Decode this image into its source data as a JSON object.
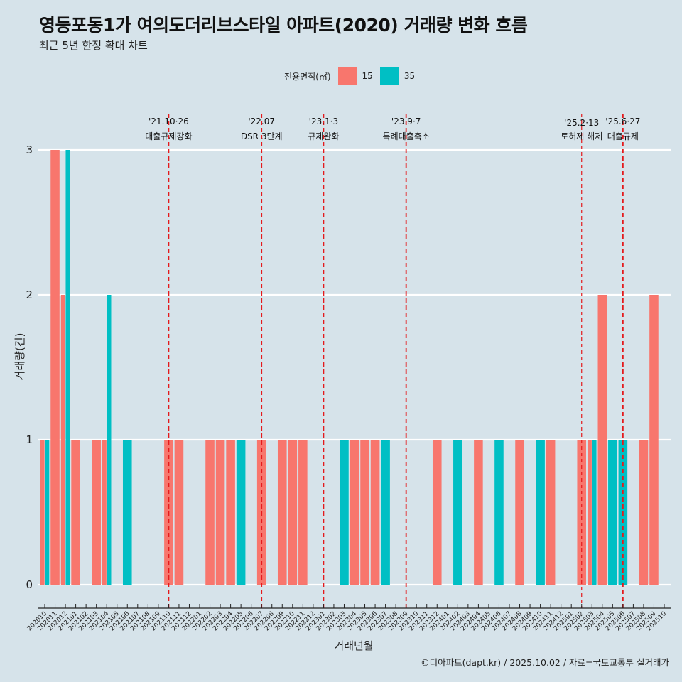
{
  "title": "영등포동1가 여의도더리브스타일 아파트(2020) 거래량 변화 흐름",
  "subtitle": "최근 5년 한정 확대 차트",
  "caption": "©디아파트(dapt.kr) / 2025.10.02 / 자료=국토교통부 실거래가",
  "legend": {
    "title": "전용면적(㎡)",
    "items": [
      {
        "label": "15",
        "color": "#f8766d"
      },
      {
        "label": "35",
        "color": "#00bfc4"
      }
    ]
  },
  "chart_data": {
    "type": "bar",
    "title": "영등포동1가 여의도더리브스타일 아파트(2020) 거래량 변화 흐름",
    "subtitle": "최근 5년 한정 확대 차트",
    "xlabel": "거래년월",
    "ylabel": "거래량(건)",
    "ylim": [
      0,
      3
    ],
    "yticks": [
      0,
      1,
      2,
      3
    ],
    "grid": true,
    "legend_position": "top",
    "bar_mode": "dodge",
    "categories": [
      "202010",
      "202011",
      "202012",
      "202101",
      "202102",
      "202103",
      "202104",
      "202105",
      "202106",
      "202107",
      "202108",
      "202109",
      "202110",
      "202111",
      "202112",
      "202201",
      "202202",
      "202203",
      "202204",
      "202205",
      "202206",
      "202207",
      "202208",
      "202209",
      "202210",
      "202211",
      "202212",
      "202301",
      "202302",
      "202303",
      "202304",
      "202305",
      "202306",
      "202307",
      "202308",
      "202309",
      "202310",
      "202311",
      "202312",
      "202401",
      "202402",
      "202403",
      "202404",
      "202405",
      "202406",
      "202407",
      "202408",
      "202409",
      "202410",
      "202411",
      "202412",
      "202501",
      "202502",
      "202503",
      "202504",
      "202505",
      "202506",
      "202507",
      "202508",
      "202509",
      "202510"
    ],
    "series": [
      {
        "name": "15",
        "color": "#f8766d",
        "values": [
          1,
          3,
          2,
          1,
          0,
          1,
          1,
          0,
          0,
          0,
          0,
          0,
          1,
          1,
          0,
          0,
          1,
          1,
          1,
          0,
          0,
          1,
          0,
          1,
          1,
          1,
          0,
          0,
          0,
          0,
          1,
          1,
          1,
          0,
          0,
          0,
          0,
          0,
          1,
          0,
          0,
          0,
          1,
          0,
          0,
          0,
          1,
          0,
          0,
          1,
          0,
          0,
          1,
          1,
          2,
          0,
          0,
          0,
          1,
          2,
          0
        ]
      },
      {
        "name": "35",
        "color": "#00bfc4",
        "values": [
          1,
          0,
          3,
          0,
          0,
          0,
          2,
          0,
          1,
          0,
          0,
          0,
          0,
          0,
          0,
          0,
          0,
          0,
          0,
          1,
          0,
          0,
          0,
          0,
          0,
          0,
          0,
          0,
          0,
          1,
          0,
          0,
          0,
          1,
          0,
          0,
          0,
          0,
          0,
          0,
          1,
          0,
          0,
          0,
          1,
          0,
          0,
          0,
          1,
          0,
          0,
          0,
          0,
          1,
          0,
          1,
          1,
          0,
          0,
          0,
          0
        ]
      }
    ],
    "annotations": [
      {
        "month": "202110",
        "date": "'21.10·26",
        "label": "대출규제강화"
      },
      {
        "month": "202207",
        "date": "'22.07",
        "label": "DSR 3단계"
      },
      {
        "month": "202301",
        "date": "'23.1·3",
        "label": "규제완화"
      },
      {
        "month": "202309",
        "date": "'23.9·7",
        "label": "특례대출축소"
      },
      {
        "month": "202502",
        "date": "'25.2·13",
        "label": "토허제 해제"
      },
      {
        "month": "202506",
        "date": "'25.6·27",
        "label": "대출규제"
      }
    ],
    "annotation_color": "#e41a1c"
  }
}
